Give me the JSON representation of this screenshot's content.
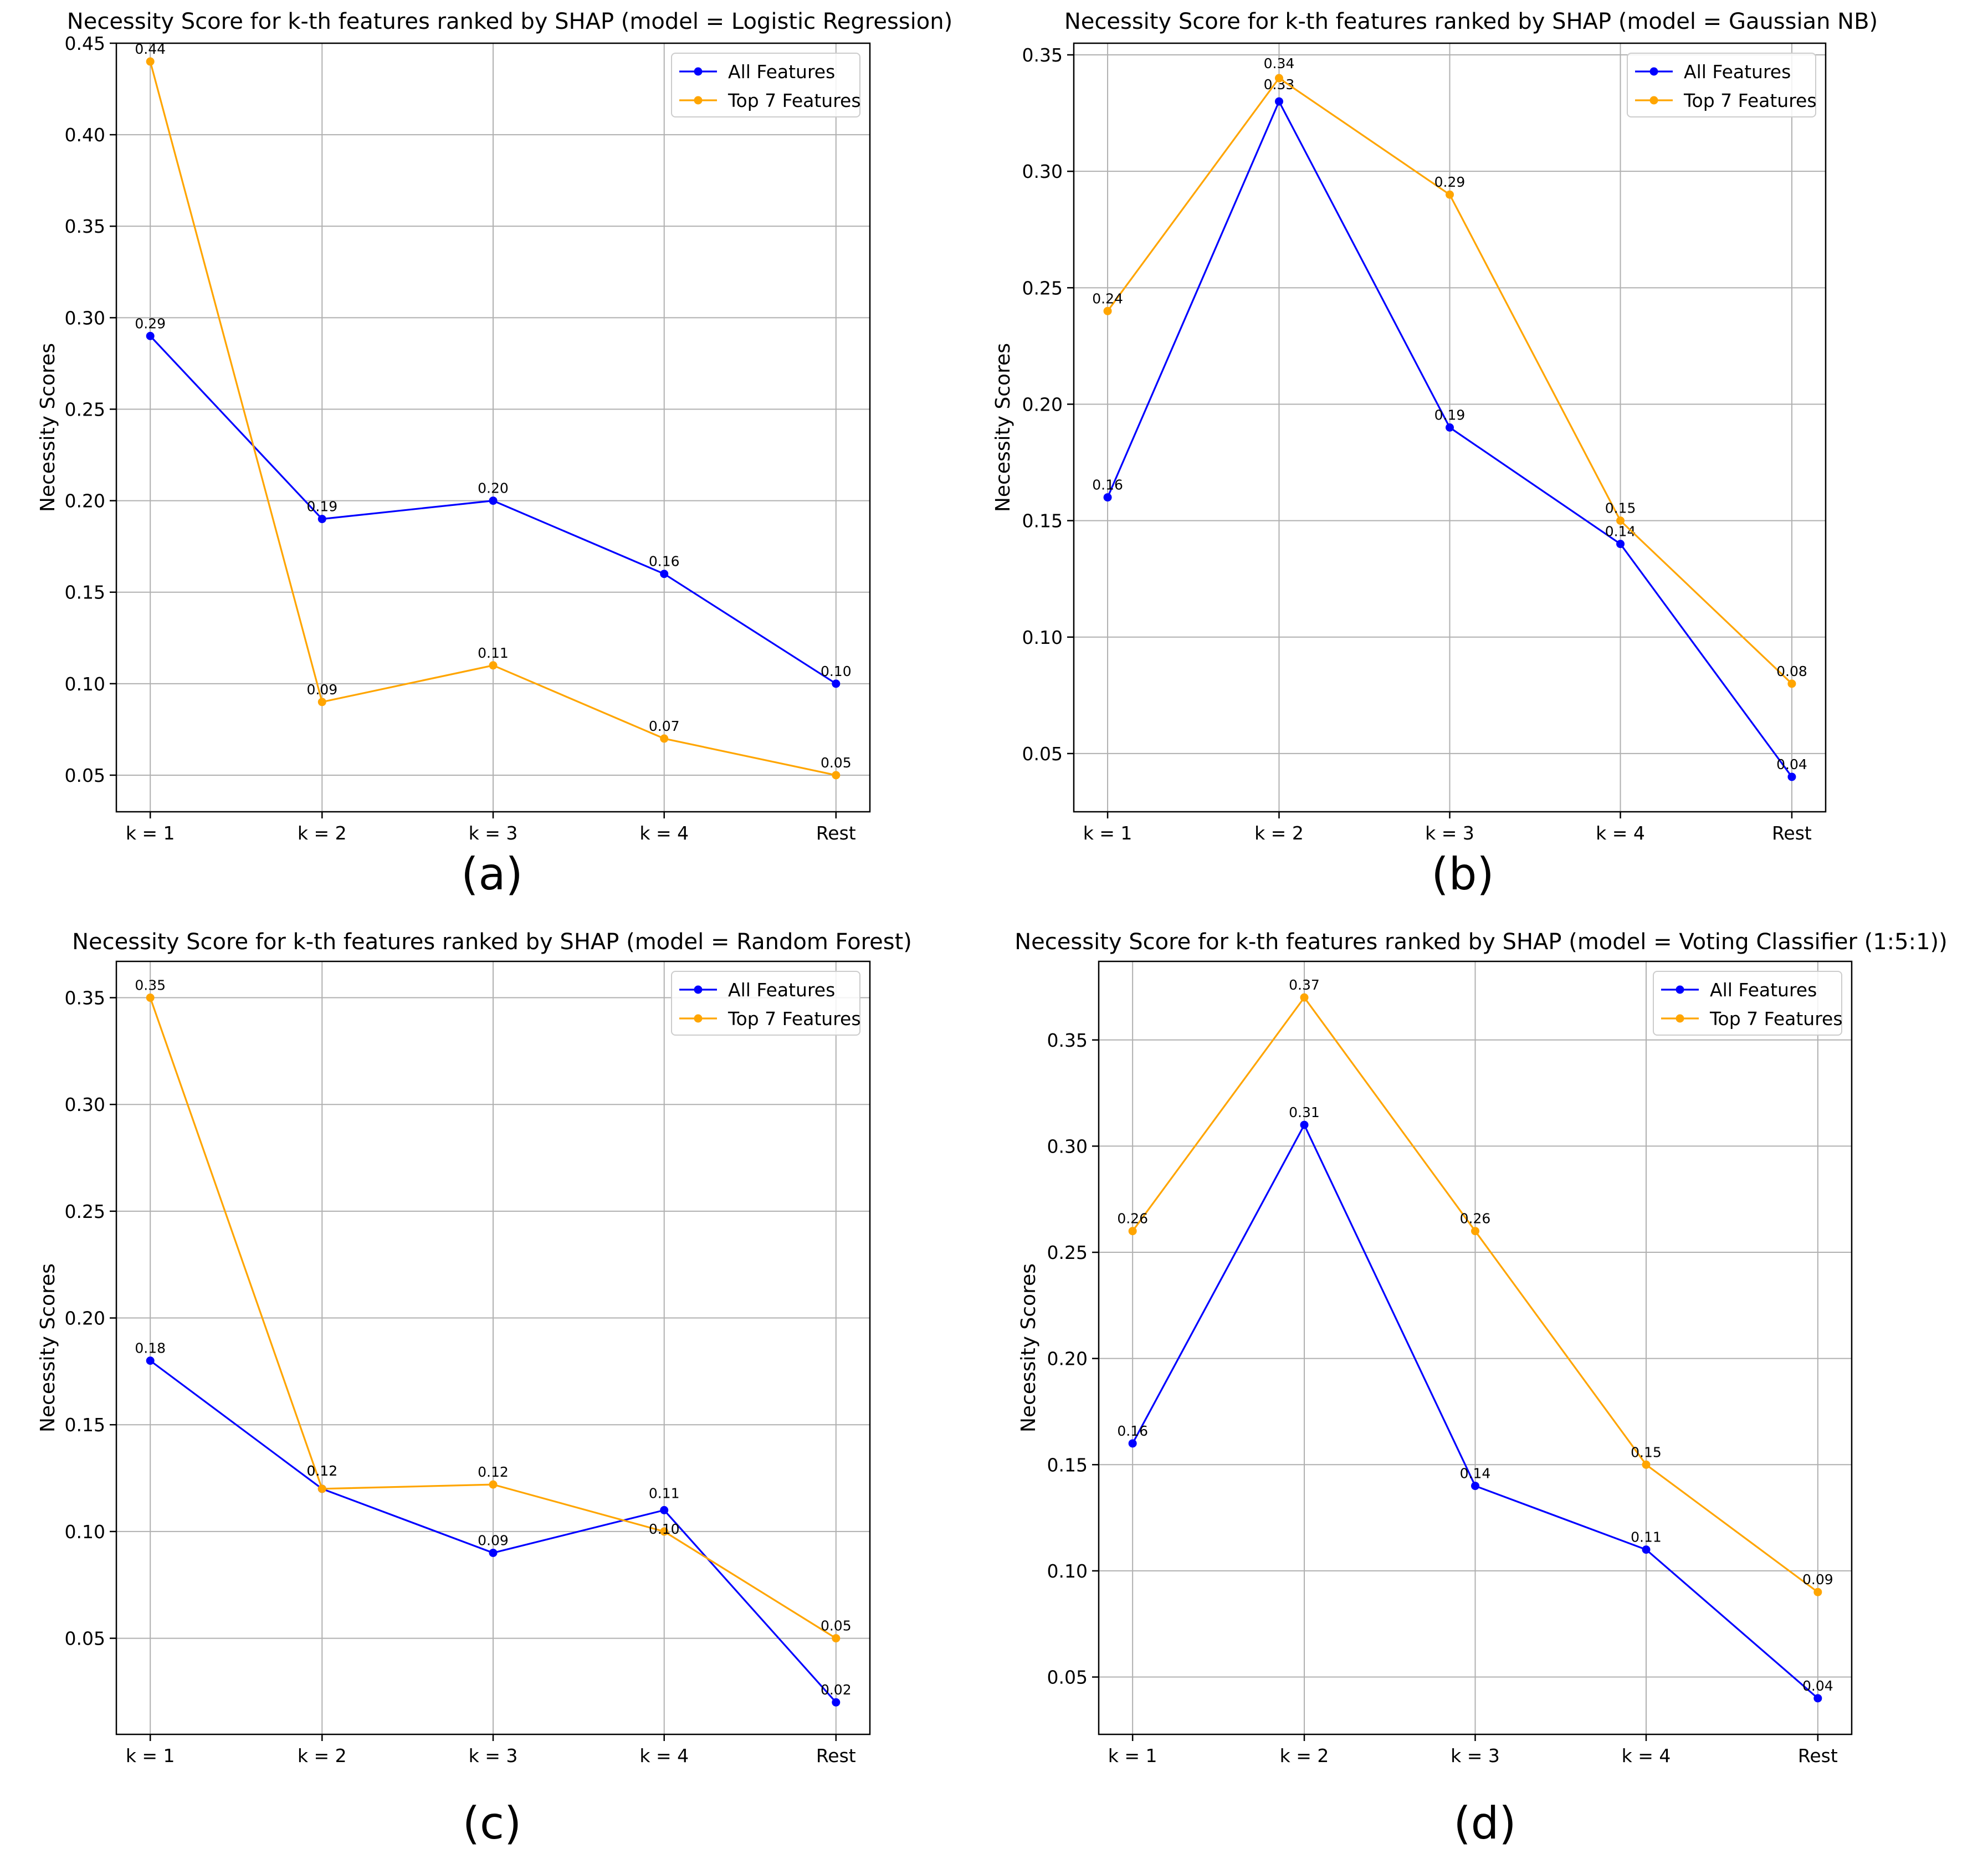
{
  "colors": {
    "all_features": "#0000ff",
    "top7_features": "#ffa500"
  },
  "chart_data": [
    {
      "type": "line",
      "panel_label": "(a)",
      "title": "Necessity Score for k-th features ranked by SHAP (model = Logistic Regression)",
      "xlabel": "",
      "ylabel": "Necessity Scores",
      "categories": [
        "k = 1",
        "k = 2",
        "k = 3",
        "k = 4",
        "Rest"
      ],
      "yticks": [
        "0.05",
        "0.10",
        "0.15",
        "0.20",
        "0.25",
        "0.30",
        "0.35",
        "0.40",
        "0.45"
      ],
      "ylim": [
        0.03,
        0.45
      ],
      "grid": true,
      "legend": "top-right",
      "series": [
        {
          "name": "All Features",
          "color": "#0000ff",
          "values": [
            0.29,
            0.19,
            0.2,
            0.16,
            0.1
          ],
          "labels": [
            "0.29",
            "0.19",
            "0.20",
            "0.16",
            "0.10"
          ]
        },
        {
          "name": "Top 7 Features",
          "color": "#ffa500",
          "values": [
            0.44,
            0.09,
            0.11,
            0.07,
            0.05
          ],
          "labels": [
            "0.44",
            "0.09",
            "0.11",
            "0.07",
            "0.05"
          ]
        }
      ]
    },
    {
      "type": "line",
      "panel_label": "(b)",
      "title": "Necessity Score for k-th features ranked by SHAP (model = Gaussian NB)",
      "xlabel": "",
      "ylabel": "Necessity Scores",
      "categories": [
        "k = 1",
        "k = 2",
        "k = 3",
        "k = 4",
        "Rest"
      ],
      "yticks": [
        "0.05",
        "0.10",
        "0.15",
        "0.20",
        "0.25",
        "0.30",
        "0.35"
      ],
      "ylim": [
        0.025,
        0.355
      ],
      "grid": true,
      "legend": "top-right",
      "series": [
        {
          "name": "All Features",
          "color": "#0000ff",
          "values": [
            0.16,
            0.33,
            0.19,
            0.14,
            0.04
          ],
          "labels": [
            "0.16",
            "0.33",
            "0.19",
            "0.14",
            "0.04"
          ]
        },
        {
          "name": "Top 7 Features",
          "color": "#ffa500",
          "values": [
            0.24,
            0.34,
            0.29,
            0.15,
            0.08
          ],
          "labels": [
            "0.24",
            "0.34",
            "0.29",
            "0.15",
            "0.08"
          ]
        }
      ]
    },
    {
      "type": "line",
      "panel_label": "(c)",
      "title": "Necessity Score for k-th features ranked by SHAP (model = Random Forest)",
      "xlabel": "",
      "ylabel": "Necessity Scores",
      "categories": [
        "k = 1",
        "k = 2",
        "k = 3",
        "k = 4",
        "Rest"
      ],
      "yticks": [
        "0.05",
        "0.10",
        "0.15",
        "0.20",
        "0.25",
        "0.30",
        "0.35"
      ],
      "ylim": [
        0.005,
        0.367
      ],
      "grid": true,
      "legend": "top-right",
      "series": [
        {
          "name": "All Features",
          "color": "#0000ff",
          "values": [
            0.18,
            0.12,
            0.09,
            0.11,
            0.02
          ],
          "labels": [
            "0.18",
            "0.12",
            "0.09",
            "0.11",
            "0.02"
          ]
        },
        {
          "name": "Top 7 Features",
          "color": "#ffa500",
          "values": [
            0.35,
            0.12,
            0.122,
            0.1,
            0.05
          ],
          "labels": [
            "0.35",
            "0.12",
            "0.12",
            "0.10",
            "0.05"
          ]
        }
      ]
    },
    {
      "type": "line",
      "panel_label": "(d)",
      "title": "Necessity Score for k-th features ranked by SHAP (model = Voting Classifier (1:5:1))",
      "xlabel": "",
      "ylabel": "Necessity Scores",
      "categories": [
        "k = 1",
        "k = 2",
        "k = 3",
        "k = 4",
        "Rest"
      ],
      "yticks": [
        "0.05",
        "0.10",
        "0.15",
        "0.20",
        "0.25",
        "0.30",
        "0.35"
      ],
      "ylim": [
        0.023,
        0.387
      ],
      "grid": true,
      "legend": "top-right",
      "series": [
        {
          "name": "All Features",
          "color": "#0000ff",
          "values": [
            0.16,
            0.31,
            0.14,
            0.11,
            0.04
          ],
          "labels": [
            "0.16",
            "0.31",
            "0.14",
            "0.11",
            "0.04"
          ]
        },
        {
          "name": "Top 7 Features",
          "color": "#ffa500",
          "values": [
            0.26,
            0.37,
            0.26,
            0.15,
            0.09
          ],
          "labels": [
            "0.26",
            "0.37",
            "0.26",
            "0.15",
            "0.09"
          ]
        }
      ]
    }
  ]
}
